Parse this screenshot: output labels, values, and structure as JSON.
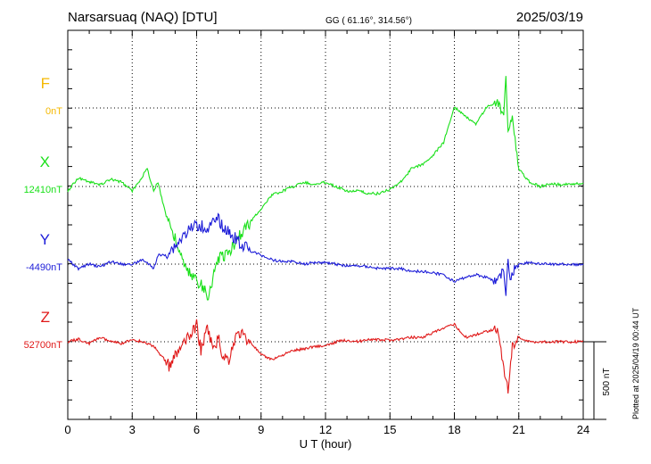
{
  "header": {
    "station": "Narsarsuaq (NAQ)  [DTU]",
    "coords": "GG ( 61.16°, 314.56°)",
    "date": "2025/03/19"
  },
  "footer": {
    "xlabel": "U T (hour)",
    "plotted": "Plotted at 2025/04/19 00:44 UT",
    "scale_label": "500 nT"
  },
  "chart_data": {
    "type": "line",
    "xlabel": "U T (hour)",
    "xlim": [
      0,
      24
    ],
    "xticks": [
      "0",
      "3",
      "6",
      "9",
      "12",
      "15",
      "18",
      "21",
      "24"
    ],
    "scale_bar_nT": 500,
    "grid": "dotted",
    "series": [
      {
        "name": "F",
        "color": "#f5b800",
        "baseline": "0nT",
        "values": []
      },
      {
        "name": "X",
        "color": "#19e019",
        "baseline": "12410nT",
        "points": [
          [
            0,
            5
          ],
          [
            0.5,
            -10
          ],
          [
            1,
            -5
          ],
          [
            1.5,
            -2
          ],
          [
            2,
            -8
          ],
          [
            2.5,
            -5
          ],
          [
            3,
            5
          ],
          [
            3.3,
            -5
          ],
          [
            3.7,
            -20
          ],
          [
            4,
            5
          ],
          [
            4.2,
            -5
          ],
          [
            4.5,
            25
          ],
          [
            5,
            60
          ],
          [
            5.5,
            95
          ],
          [
            6,
            105
          ],
          [
            6.3,
            115
          ],
          [
            6.5,
            125
          ],
          [
            6.8,
            100
          ],
          [
            7,
            80
          ],
          [
            7.5,
            75
          ],
          [
            8,
            55
          ],
          [
            8.5,
            40
          ],
          [
            9,
            25
          ],
          [
            9.5,
            10
          ],
          [
            10,
            5
          ],
          [
            10.5,
            0
          ],
          [
            11,
            -5
          ],
          [
            11.5,
            -2
          ],
          [
            12,
            -5
          ],
          [
            12.5,
            0
          ],
          [
            13,
            5
          ],
          [
            13.5,
            5
          ],
          [
            14,
            8
          ],
          [
            14.5,
            8
          ],
          [
            15,
            3
          ],
          [
            15.5,
            -5
          ],
          [
            16,
            -20
          ],
          [
            16.5,
            -25
          ],
          [
            17,
            -35
          ],
          [
            17.5,
            -50
          ],
          [
            18,
            -90
          ],
          [
            18.5,
            -80
          ],
          [
            19,
            -70
          ],
          [
            19.5,
            -90
          ],
          [
            20,
            -95
          ],
          [
            20.3,
            -80
          ],
          [
            20.4,
            -125
          ],
          [
            20.5,
            -65
          ],
          [
            20.7,
            -80
          ],
          [
            21,
            -20
          ],
          [
            21.5,
            -5
          ],
          [
            22,
            0
          ],
          [
            22.5,
            -3
          ],
          [
            23,
            -2
          ],
          [
            24,
            -4
          ]
        ]
      },
      {
        "name": "Y",
        "color": "#1c1cd8",
        "baseline": "-4490nT",
        "points": [
          [
            0,
            -5
          ],
          [
            0.5,
            5
          ],
          [
            1,
            0
          ],
          [
            1.5,
            3
          ],
          [
            2,
            -3
          ],
          [
            2.5,
            0
          ],
          [
            3,
            0
          ],
          [
            3.5,
            -5
          ],
          [
            4,
            5
          ],
          [
            4.2,
            -10
          ],
          [
            4.5,
            -10
          ],
          [
            5,
            -20
          ],
          [
            5.5,
            -35
          ],
          [
            6,
            -45
          ],
          [
            6.5,
            -40
          ],
          [
            7,
            -50
          ],
          [
            7.5,
            -35
          ],
          [
            8,
            -25
          ],
          [
            8.5,
            -15
          ],
          [
            9,
            -10
          ],
          [
            9.5,
            -5
          ],
          [
            10,
            -3
          ],
          [
            10.5,
            -3
          ],
          [
            11,
            0
          ],
          [
            11.5,
            -2
          ],
          [
            12,
            -2
          ],
          [
            12.5,
            0
          ],
          [
            13,
            2
          ],
          [
            13.5,
            2
          ],
          [
            14,
            3
          ],
          [
            14.5,
            5
          ],
          [
            15,
            5
          ],
          [
            15.5,
            5
          ],
          [
            16,
            8
          ],
          [
            16.5,
            8
          ],
          [
            17,
            10
          ],
          [
            17.5,
            12
          ],
          [
            18,
            20
          ],
          [
            18.5,
            15
          ],
          [
            19,
            12
          ],
          [
            19.5,
            15
          ],
          [
            20,
            20
          ],
          [
            20.3,
            5
          ],
          [
            20.4,
            40
          ],
          [
            20.5,
            -10
          ],
          [
            20.6,
            20
          ],
          [
            20.8,
            5
          ],
          [
            21,
            0
          ],
          [
            21.5,
            -2
          ],
          [
            22,
            0
          ],
          [
            22.5,
            0
          ],
          [
            23,
            0
          ],
          [
            24,
            1
          ]
        ]
      },
      {
        "name": "Z",
        "color": "#e01818",
        "baseline": "52700nT",
        "points": [
          [
            0,
            0
          ],
          [
            0.5,
            -3
          ],
          [
            1,
            2
          ],
          [
            1.5,
            -5
          ],
          [
            2,
            0
          ],
          [
            2.5,
            2
          ],
          [
            3,
            -2
          ],
          [
            3.5,
            0
          ],
          [
            4,
            5
          ],
          [
            4.5,
            20
          ],
          [
            4.8,
            30
          ],
          [
            5,
            15
          ],
          [
            5.5,
            0
          ],
          [
            5.8,
            -10
          ],
          [
            6,
            -20
          ],
          [
            6.2,
            10
          ],
          [
            6.5,
            -15
          ],
          [
            6.8,
            10
          ],
          [
            7,
            -5
          ],
          [
            7.2,
            15
          ],
          [
            7.5,
            20
          ],
          [
            7.8,
            -5
          ],
          [
            8,
            -10
          ],
          [
            8.5,
            0
          ],
          [
            9,
            15
          ],
          [
            9.5,
            20
          ],
          [
            10,
            15
          ],
          [
            10.5,
            10
          ],
          [
            11,
            8
          ],
          [
            11.5,
            5
          ],
          [
            12,
            5
          ],
          [
            12.5,
            0
          ],
          [
            13,
            -2
          ],
          [
            13.5,
            0
          ],
          [
            14,
            -3
          ],
          [
            14.5,
            -2
          ],
          [
            15,
            -2
          ],
          [
            15.5,
            -3
          ],
          [
            16,
            -5
          ],
          [
            16.5,
            -5
          ],
          [
            17,
            -10
          ],
          [
            17.5,
            -15
          ],
          [
            18,
            -20
          ],
          [
            18.5,
            -5
          ],
          [
            19,
            -8
          ],
          [
            19.5,
            -12
          ],
          [
            20,
            -15
          ],
          [
            20.3,
            30
          ],
          [
            20.5,
            55
          ],
          [
            20.7,
            5
          ],
          [
            21,
            -5
          ],
          [
            21.5,
            0
          ],
          [
            22,
            0
          ],
          [
            22.5,
            0
          ],
          [
            23,
            0
          ],
          [
            24,
            0
          ]
        ]
      }
    ]
  }
}
